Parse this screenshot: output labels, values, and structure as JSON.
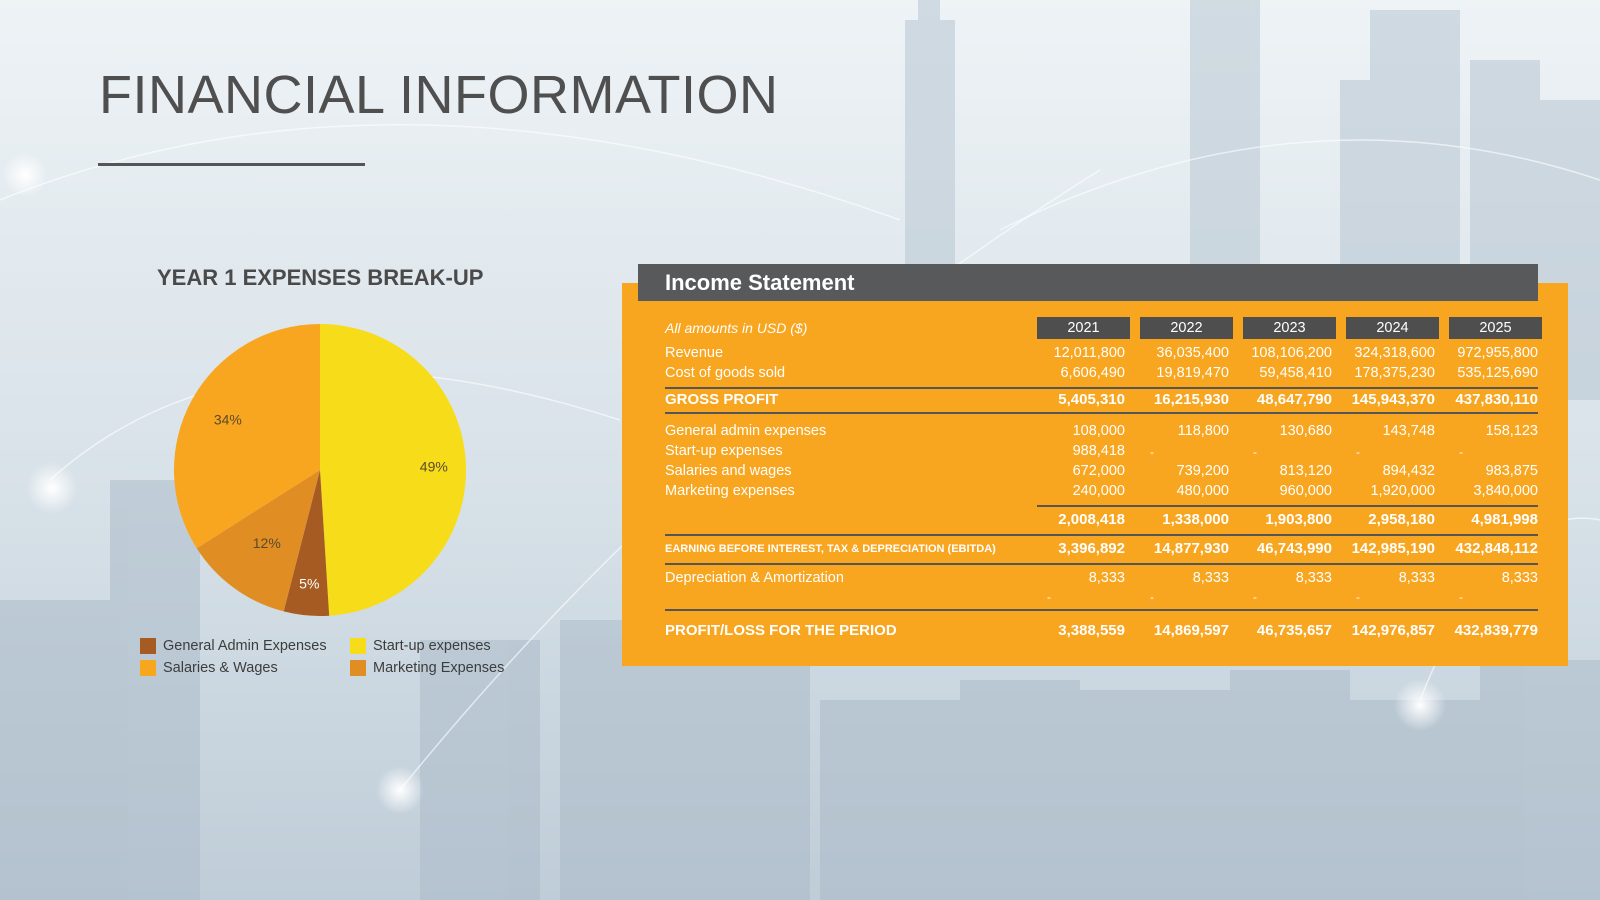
{
  "page_title": "FINANCIAL INFORMATION",
  "chart_data": {
    "type": "pie",
    "title": "YEAR 1 EXPENSES BREAK-UP",
    "slices": [
      {
        "label": "Start-up expenses",
        "value": 49,
        "label_text": "49%",
        "color": "#f7dc1a"
      },
      {
        "label": "General Admin Expenses",
        "value": 5,
        "label_text": "5%",
        "color": "#a65b22"
      },
      {
        "label": "Marketing Expenses",
        "value": 12,
        "label_text": "12%",
        "color": "#e08e24"
      },
      {
        "label": "Salaries & Wages",
        "value": 34,
        "label_text": "34%",
        "color": "#f8a51f"
      }
    ],
    "legend": [
      {
        "label": "General Admin Expenses",
        "color": "#a65b22"
      },
      {
        "label": "Start-up expenses",
        "color": "#f7dc1a"
      },
      {
        "label": "Salaries & Wages",
        "color": "#f8a51f"
      },
      {
        "label": "Marketing Expenses",
        "color": "#e08e24"
      }
    ],
    "legend_placement": "bottom"
  },
  "income_statement": {
    "title": "Income Statement",
    "units_note": "All amounts in USD ($)",
    "years": [
      "2021",
      "2022",
      "2023",
      "2024",
      "2025"
    ],
    "rows": {
      "revenue": {
        "label": "Revenue",
        "values": [
          "12,011,800",
          "36,035,400",
          "108,106,200",
          "324,318,600",
          "972,955,800"
        ]
      },
      "cogs": {
        "label": "Cost of goods sold",
        "values": [
          "6,606,490",
          "19,819,470",
          "59,458,410",
          "178,375,230",
          "535,125,690"
        ]
      },
      "gross_profit": {
        "label": "GROSS PROFIT",
        "values": [
          "5,405,310",
          "16,215,930",
          "48,647,790",
          "145,943,370",
          "437,830,110"
        ]
      },
      "general_admin": {
        "label": "General admin expenses",
        "values": [
          "108,000",
          "118,800",
          "130,680",
          "143,748",
          "158,123"
        ]
      },
      "startup": {
        "label": "Start-up expenses",
        "values": [
          "988,418",
          "-",
          "-",
          "-",
          "-"
        ]
      },
      "salaries": {
        "label": "Salaries and wages",
        "values": [
          "672,000",
          "739,200",
          "813,120",
          "894,432",
          "983,875"
        ]
      },
      "marketing": {
        "label": "Marketing expenses",
        "values": [
          "240,000",
          "480,000",
          "960,000",
          "1,920,000",
          "3,840,000"
        ]
      },
      "total_expenses": {
        "label": "",
        "values": [
          "2,008,418",
          "1,338,000",
          "1,903,800",
          "2,958,180",
          "4,981,998"
        ]
      },
      "ebitda": {
        "label": "EARNING BEFORE INTEREST, TAX & DEPRECIATION (EBITDA)",
        "values": [
          "3,396,892",
          "14,877,930",
          "46,743,990",
          "142,985,190",
          "432,848,112"
        ]
      },
      "depreciation": {
        "label": "Depreciation & Amortization",
        "values": [
          "8,333",
          "8,333",
          "8,333",
          "8,333",
          "8,333"
        ]
      },
      "dash_row": {
        "label": "",
        "values": [
          "-",
          "-",
          "-",
          "-",
          "-"
        ]
      },
      "profit": {
        "label": "PROFIT/LOSS FOR THE PERIOD",
        "values": [
          "3,388,559",
          "14,869,597",
          "46,735,657",
          "142,976,857",
          "432,839,779"
        ]
      }
    }
  }
}
